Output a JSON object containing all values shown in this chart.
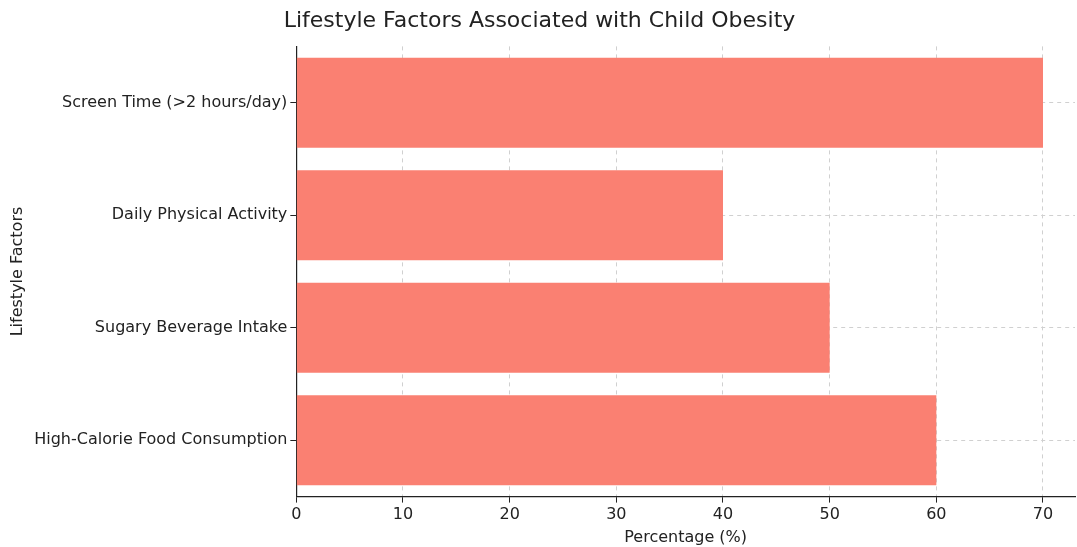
{
  "chart_data": {
    "type": "bar",
    "orientation": "horizontal",
    "title": "Lifestyle Factors Associated with Child Obesity",
    "xlabel": "Percentage (%)",
    "ylabel": "Lifestyle Factors",
    "categories": [
      "Screen Time (>2 hours/day)",
      "Daily Physical Activity",
      "Sugary Beverage Intake",
      "High-Calorie Food Consumption"
    ],
    "values": [
      70,
      40,
      50,
      60
    ],
    "color": "#fa8072",
    "xlim": [
      0,
      73
    ],
    "xticks": [
      0,
      10,
      20,
      30,
      40,
      50,
      60,
      70
    ],
    "grid": true,
    "legend": false
  }
}
